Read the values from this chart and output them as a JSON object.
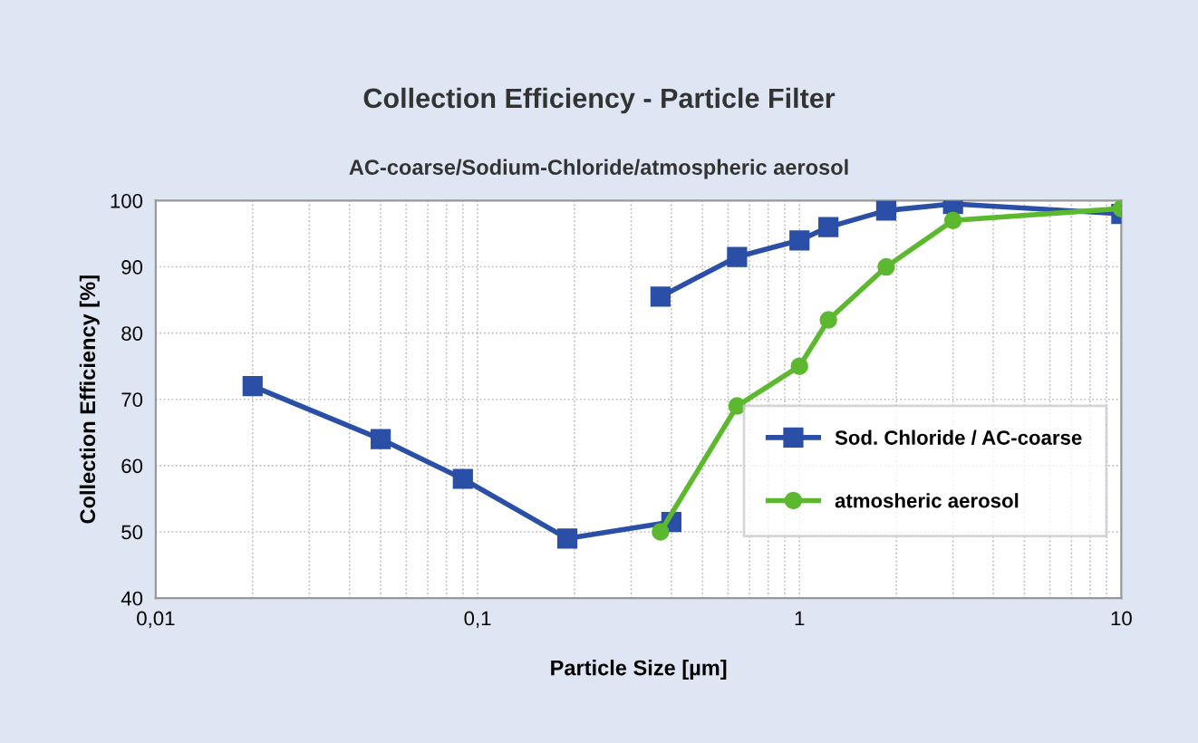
{
  "chart_data": {
    "type": "line",
    "title": "Collection Efficiency - Particle Filter",
    "subtitle": "AC-coarse/Sodium-Chloride/atmospheric aerosol",
    "xlabel": "Particle Size [µm]",
    "ylabel": "Collection Efficiency [%]",
    "log": "x",
    "xlim": [
      0.01,
      10
    ],
    "xticks": [
      {
        "value": 0.01,
        "label": "0,01"
      },
      {
        "value": 0.1,
        "label": "0,1"
      },
      1,
      10
    ],
    "ylim": [
      40,
      100
    ],
    "yticks": [
      40,
      50,
      60,
      70,
      80,
      90,
      100
    ],
    "grid": true,
    "legend": "right",
    "line_style": "solid",
    "series": [
      {
        "name": "Sod. Chloride / AC-coarse",
        "color": "#2b4fa6",
        "marker": "square",
        "x": [
          0.02,
          0.05,
          0.09,
          0.19,
          0.4,
          0.385,
          0.37,
          0.64,
          1,
          1.23,
          1.86,
          3,
          10
        ],
        "values": [
          72,
          64,
          58,
          49,
          51.5,
          null,
          85.5,
          91.5,
          94,
          96,
          98.5,
          99.5,
          98
        ]
      },
      {
        "name": "atmosheric aerosol",
        "color": "#5cb82e",
        "marker": "circle",
        "x": [
          0.37,
          0.64,
          1,
          1.23,
          1.86,
          3,
          10
        ],
        "values": [
          50,
          69,
          75,
          82,
          90,
          97,
          98.8
        ]
      }
    ]
  }
}
